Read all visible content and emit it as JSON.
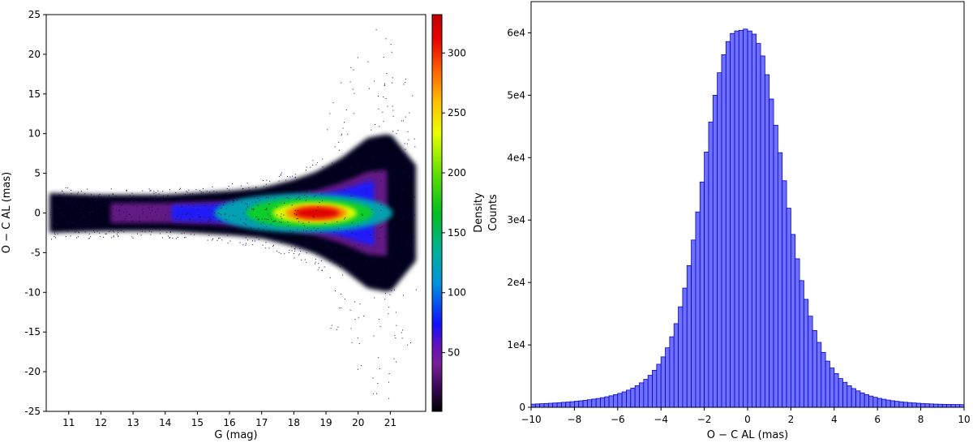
{
  "chart_data": [
    {
      "type": "heatmap",
      "title": "",
      "xlabel": "G (mag)",
      "ylabel": "O − C  AL (mas)",
      "xlim": [
        10.3,
        22.1
      ],
      "ylim": [
        -25,
        25
      ],
      "x_ticks": [
        11,
        12,
        13,
        14,
        15,
        16,
        17,
        18,
        19,
        20,
        21
      ],
      "y_ticks": [
        -25,
        -20,
        -15,
        -10,
        -5,
        0,
        5,
        10,
        15,
        20,
        25
      ],
      "grid": false,
      "colorbar": {
        "label": "Density",
        "range": [
          1,
          332
        ],
        "ticks": [
          50,
          100,
          150,
          200,
          250,
          300
        ],
        "colors": [
          "#000000",
          "#7a1f9a",
          "#1010ff",
          "#00b0a0",
          "#10e010",
          "#e8ff00",
          "#ff9000",
          "#e00000",
          "#c00000"
        ]
      },
      "density_ridge": {
        "description_points_G": [
          10.5,
          12,
          14,
          16,
          17,
          18,
          18.7,
          19.5,
          20.3,
          21,
          21.8
        ],
        "half_width_mas": [
          2.5,
          2.3,
          2.3,
          2.8,
          3.2,
          4.2,
          5.2,
          7.0,
          9.5,
          10.0,
          6.0
        ],
        "peak_G": 18.7,
        "peak_value": 332
      }
    },
    {
      "type": "bar",
      "title": "",
      "xlabel": "O − C  AL (mas)",
      "ylabel": "Counts",
      "xlim": [
        -10,
        10
      ],
      "ylim": [
        0,
        65000
      ],
      "x_ticks": [
        -10,
        -8,
        -6,
        -4,
        -2,
        0,
        2,
        4,
        6,
        8,
        10
      ],
      "y_ticks": [
        0,
        10000,
        20000,
        30000,
        40000,
        50000,
        60000
      ],
      "y_tick_labels": [
        "0",
        "1e4",
        "2e4",
        "3e4",
        "4e4",
        "5e4",
        "6e4"
      ],
      "grid": false,
      "bin_centers": [
        -9.9,
        -9.7,
        -9.5,
        -9.3,
        -9.1,
        -8.9,
        -8.7,
        -8.5,
        -8.3,
        -8.1,
        -7.9,
        -7.7,
        -7.5,
        -7.3,
        -7.1,
        -6.9,
        -6.7,
        -6.5,
        -6.3,
        -6.1,
        -5.9,
        -5.7,
        -5.5,
        -5.3,
        -5.1,
        -4.9,
        -4.7,
        -4.5,
        -4.3,
        -4.1,
        -3.9,
        -3.7,
        -3.5,
        -3.3,
        -3.1,
        -2.9,
        -2.7,
        -2.5,
        -2.3,
        -2.1,
        -1.9,
        -1.7,
        -1.5,
        -1.3,
        -1.1,
        -0.9,
        -0.7,
        -0.5,
        -0.3,
        -0.1,
        0.1,
        0.3,
        0.5,
        0.7,
        0.9,
        1.1,
        1.3,
        1.5,
        1.7,
        1.9,
        2.1,
        2.3,
        2.5,
        2.7,
        2.9,
        3.1,
        3.3,
        3.5,
        3.7,
        3.9,
        4.1,
        4.3,
        4.5,
        4.7,
        4.9,
        5.1,
        5.3,
        5.5,
        5.7,
        5.9,
        6.1,
        6.3,
        6.5,
        6.7,
        6.9,
        7.1,
        7.3,
        7.5,
        7.7,
        7.9,
        8.1,
        8.3,
        8.5,
        8.7,
        8.9,
        9.1,
        9.3,
        9.5,
        9.7,
        9.9
      ],
      "values": [
        500,
        540,
        570,
        610,
        650,
        690,
        740,
        790,
        840,
        900,
        970,
        1040,
        1120,
        1210,
        1310,
        1420,
        1540,
        1680,
        1840,
        2020,
        2230,
        2470,
        2750,
        3080,
        3460,
        3920,
        4470,
        5130,
        5930,
        6900,
        8080,
        9530,
        11300,
        13400,
        16100,
        19100,
        22700,
        26800,
        31300,
        36100,
        40900,
        45700,
        50000,
        53600,
        56500,
        58600,
        59900,
        60300,
        60400,
        60600,
        60300,
        59800,
        58300,
        56300,
        53300,
        49400,
        45200,
        40800,
        36300,
        31900,
        27700,
        23800,
        20300,
        17300,
        14600,
        12300,
        10400,
        8800,
        7400,
        6300,
        5400,
        4600,
        4000,
        3450,
        3000,
        2630,
        2310,
        2040,
        1800,
        1600,
        1430,
        1290,
        1160,
        1050,
        960,
        880,
        810,
        750,
        700,
        650,
        610,
        570,
        540,
        510,
        490,
        470,
        460,
        450,
        440,
        430
      ],
      "bar_color": "#7070ff",
      "edge_color": "#0000cc"
    }
  ]
}
